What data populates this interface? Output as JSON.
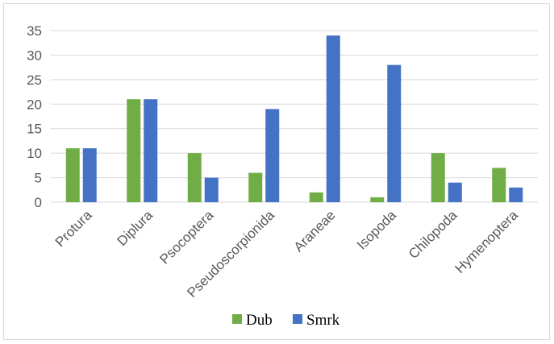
{
  "chart_data": {
    "type": "bar",
    "title": "",
    "xlabel": "",
    "ylabel": "",
    "categories": [
      "Protura",
      "Diplura",
      "Psocoptera",
      "Pseudoscorpionida",
      "Araneae",
      "Isopoda",
      "Chilopoda",
      "Hymenoptera"
    ],
    "series": [
      {
        "name": "Dub",
        "color": "#70ad47",
        "values": [
          11,
          21,
          10,
          6,
          2,
          1,
          10,
          7
        ]
      },
      {
        "name": "Smrk",
        "color": "#4472c4",
        "values": [
          11,
          21,
          5,
          19,
          34,
          28,
          4,
          3
        ]
      }
    ],
    "ylim": [
      0,
      35
    ],
    "yticks": [
      0,
      5,
      10,
      15,
      20,
      25,
      30,
      35
    ],
    "grid": true,
    "legend_position": "bottom",
    "gridline_color": "#d9d9d9"
  }
}
